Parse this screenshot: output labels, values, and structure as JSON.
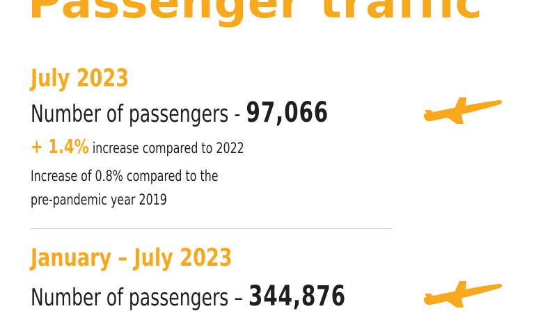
{
  "title": "Passenger traffic",
  "accent_color": "#f7a81b",
  "sections": [
    {
      "period": "July 2023",
      "count_label": "Number of passengers - ",
      "count_value": "97,066",
      "growth_pct": "+ 1.4%",
      "growth_text": " increase compared to 2022",
      "note_lines": [
        "Increase of 0.8% compared to the",
        "pre-pandemic year 2019"
      ],
      "icon": "airplane-icon"
    },
    {
      "period": "January – July 2023",
      "count_label": "Number of passengers – ",
      "count_value": "344,876",
      "icon": "airplane-icon"
    }
  ]
}
